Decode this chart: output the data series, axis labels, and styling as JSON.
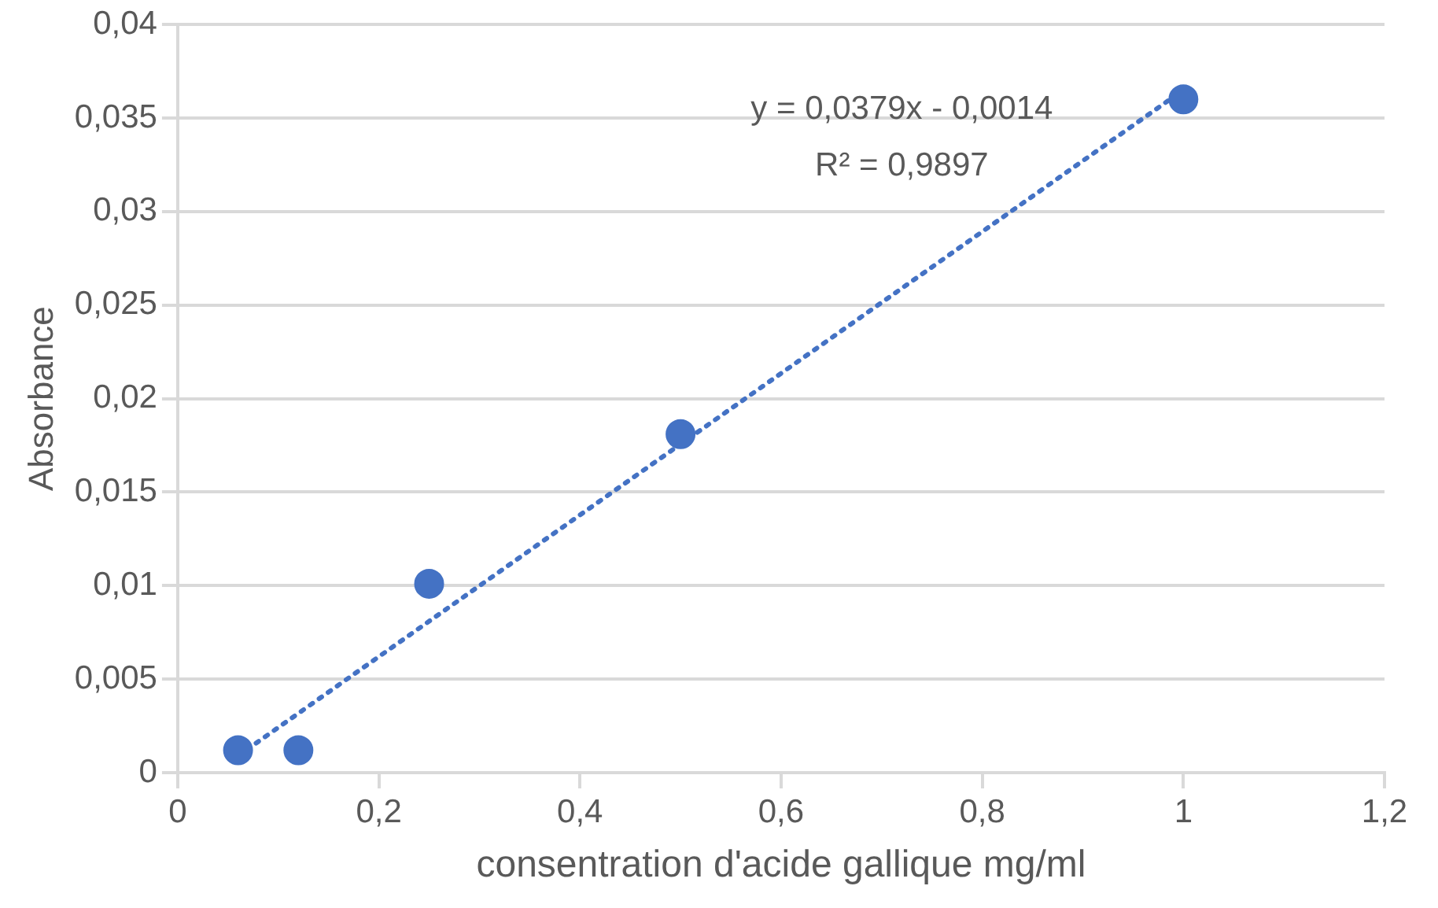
{
  "chart_data": {
    "type": "scatter",
    "xlabel": "consentration d'acide gallique mg/ml",
    "ylabel": "Absorbance",
    "x": [
      0.06,
      0.12,
      0.25,
      0.5,
      1
    ],
    "series": [
      {
        "color": "#4472c4",
        "values": [
          0.0012,
          0.0012,
          0.0101,
          0.0181,
          0.036
        ],
        "marker": "circle"
      },
      {
        "type": "line",
        "color": "#4472c4",
        "x": [
          0.06,
          1
        ],
        "values": [
          0.0009,
          0.0365
        ],
        "line_style": "dotted",
        "marker": "none"
      }
    ],
    "xlim": [
      0,
      1.2
    ],
    "xticks": [
      0,
      {
        "value": 0.2,
        "label": "0,2"
      },
      {
        "value": 0.4,
        "label": "0,4"
      },
      {
        "value": 0.6,
        "label": "0,6"
      },
      {
        "value": 0.8,
        "label": "0,8"
      },
      1,
      {
        "value": 1.2,
        "label": "1,2"
      }
    ],
    "ylim": [
      0,
      0.04
    ],
    "yticks": [
      0,
      {
        "value": 0.005,
        "label": "0,005"
      },
      {
        "value": 0.01,
        "label": "0,01"
      },
      {
        "value": 0.015,
        "label": "0,015"
      },
      {
        "value": 0.02,
        "label": "0,02"
      },
      {
        "value": 0.025,
        "label": "0,025"
      },
      {
        "value": 0.03,
        "label": "0,03"
      },
      {
        "value": 0.035,
        "label": "0,035"
      },
      {
        "value": 0.04,
        "label": "0,04"
      }
    ],
    "grid": "y",
    "legend": false,
    "annotations": [
      "y = 0,0379x - 0,0014",
      "R² = 0,9897"
    ]
  }
}
